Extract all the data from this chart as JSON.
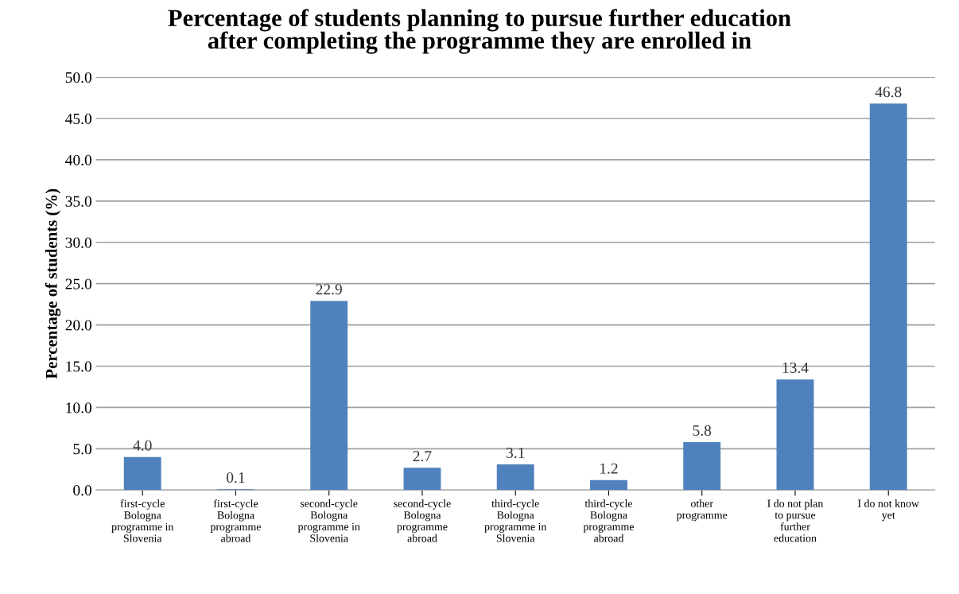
{
  "chart_data": {
    "type": "bar",
    "title": "Percentage of students planning to pursue further education\nafter completing the programme they are enrolled in",
    "ylabel": "Percentage of students (%)",
    "categories": [
      "first-cycle\nBologna\nprogramme in\nSlovenia",
      "first-cycle\nBologna\nprogramme\nabroad",
      "second-cycle\nBologna\nprogramme in\nSlovenia",
      "second-cycle\nBologna\nprogramme\nabroad",
      "third-cycle\nBologna\nprogramme in\nSlovenia",
      "third-cycle\nBologna\nprogramme\nabroad",
      "other\nprogramme",
      "I do not plan\nto pursue\nfurther\neducation",
      "I do not know\nyet"
    ],
    "values": [
      4.0,
      0.1,
      22.9,
      2.7,
      3.1,
      1.2,
      5.8,
      13.4,
      46.8
    ],
    "value_labels": [
      "4.0",
      "0.1",
      "22.9",
      "2.7",
      "3.1",
      "1.2",
      "5.8",
      "13.4",
      "46.8"
    ],
    "color": "#4f81bd",
    "ylim": [
      0,
      50
    ],
    "yticks": [
      {
        "value": 0,
        "label": "0.0"
      },
      {
        "value": 5,
        "label": "5.0"
      },
      {
        "value": 10,
        "label": "10.0"
      },
      {
        "value": 15,
        "label": "15.0"
      },
      {
        "value": 20,
        "label": "20.0"
      },
      {
        "value": 25,
        "label": "25.0"
      },
      {
        "value": 30,
        "label": "30.0"
      },
      {
        "value": 35,
        "label": "35.0"
      },
      {
        "value": 40,
        "label": "40.0"
      },
      {
        "value": 45,
        "label": "45.0"
      },
      {
        "value": 50,
        "label": "50.0"
      }
    ],
    "grid": "y"
  }
}
